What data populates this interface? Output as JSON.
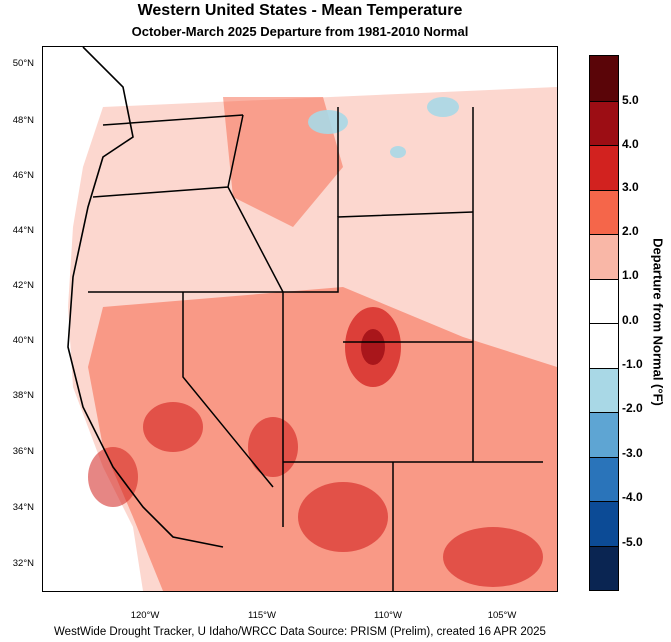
{
  "title": "Western United States - Mean Temperature",
  "subtitle": "October-March 2025  Departure from 1981-2010 Normal",
  "footer": "WestWide Drought Tracker, U Idaho/WRCC Data Source: PRISM (Prelim), created 16 APR 2025",
  "latitude_labels": [
    "50°N",
    "48°N",
    "46°N",
    "44°N",
    "42°N",
    "40°N",
    "38°N",
    "36°N",
    "34°N",
    "32°N"
  ],
  "longitude_labels": [
    "120°W",
    "115°W",
    "110°W",
    "105°W"
  ],
  "legend": {
    "title": "Departure from Normal (°F)",
    "labels": [
      "5.0",
      "4.0",
      "3.0",
      "2.0",
      "1.0",
      "0.0",
      "-1.0",
      "-2.0",
      "-3.0",
      "-4.0",
      "-5.0"
    ],
    "colors": [
      "#5a0508",
      "#9c0d14",
      "#d2221f",
      "#f5664a",
      "#f9b7a7",
      "#ffffff",
      "#ffffff",
      "#a9d8e6",
      "#5ea5d3",
      "#2a74ba",
      "#0c4b96",
      "#0a2552"
    ]
  },
  "map_colors": {
    "low_anomaly": "#a9d8e6",
    "warm_light": "#f9b7a7",
    "warm_moderate": "#f5664a",
    "warm_strong": "#d2221f",
    "warm_very_strong": "#9c0d14"
  }
}
